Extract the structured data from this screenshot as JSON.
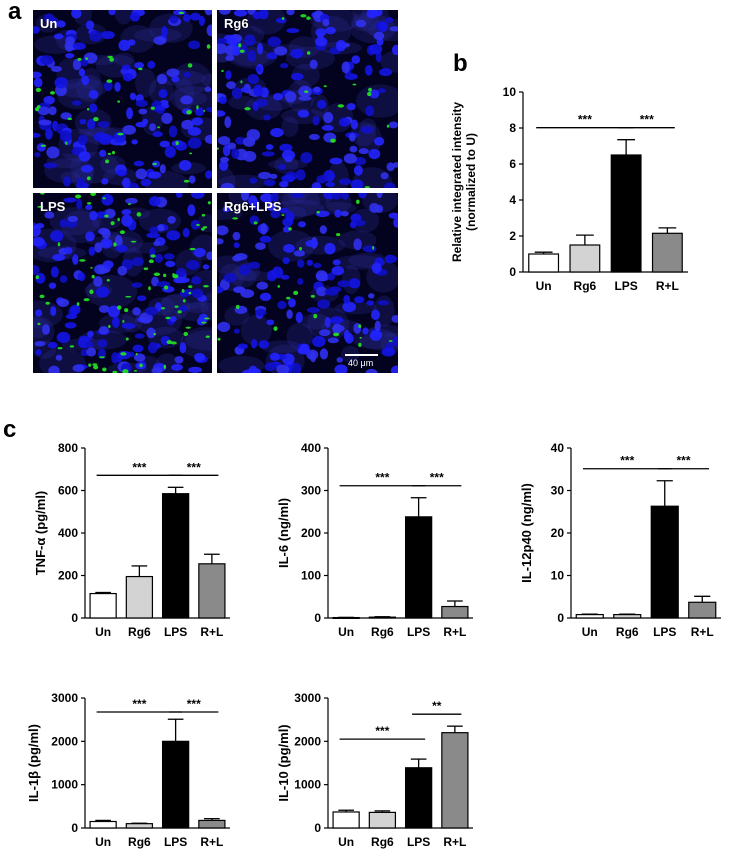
{
  "panels": {
    "a": "a",
    "b": "b",
    "c": "c"
  },
  "micrographs": [
    {
      "label": "Un",
      "green_density": 0.35
    },
    {
      "label": "Rg6",
      "green_density": 0.15
    },
    {
      "label": "LPS",
      "green_density": 1.0
    },
    {
      "label": "Rg6+LPS",
      "green_density": 0.2
    }
  ],
  "scalebar": {
    "label": "40 μm"
  },
  "colors": {
    "nuclei": "#1a1aff",
    "signal": "#22dd22",
    "background": "#03031f",
    "Un": "#ffffff",
    "Rg6": "#d3d3d3",
    "LPS": "#000000",
    "R+L": "#8a8a8a"
  },
  "chart_data": [
    {
      "type": "bar",
      "panel": "b",
      "categories": [
        "Un",
        "Rg6",
        "LPS",
        "R+L"
      ],
      "values": [
        1.0,
        1.5,
        6.5,
        2.15
      ],
      "errors": [
        0.1,
        0.55,
        0.85,
        0.3
      ],
      "ylabel": [
        "Relative integrated intensity",
        "(normalized to U)"
      ],
      "ylim": [
        0,
        10
      ],
      "yticks": [
        "0",
        "2",
        "4",
        "6",
        "8",
        "10"
      ],
      "significance": [
        {
          "from": 0,
          "to": 2,
          "label": "***"
        },
        {
          "from": 2,
          "to": 3,
          "label": "***"
        }
      ]
    },
    {
      "type": "bar",
      "panel": "c",
      "categories": [
        "Un",
        "Rg6",
        "LPS",
        "R+L"
      ],
      "values": [
        115,
        195,
        585,
        255
      ],
      "errors": [
        5,
        50,
        30,
        45
      ],
      "ylabel": [
        "TNF-α (pg/ml)"
      ],
      "ylim": [
        0,
        800
      ],
      "yticks": [
        "0",
        "200",
        "400",
        "600",
        "800"
      ],
      "significance": [
        {
          "from": 0,
          "to": 2,
          "label": "***"
        },
        {
          "from": 2,
          "to": 3,
          "label": "***"
        }
      ]
    },
    {
      "type": "bar",
      "panel": "c",
      "categories": [
        "Un",
        "Rg6",
        "LPS",
        "R+L"
      ],
      "values": [
        1,
        2,
        238,
        27
      ],
      "errors": [
        0.5,
        1,
        45,
        13
      ],
      "ylabel": [
        "IL-6 (ng/ml)"
      ],
      "ylim": [
        0,
        400
      ],
      "yticks": [
        "0",
        "100",
        "200",
        "300",
        "400"
      ],
      "significance": [
        {
          "from": 0,
          "to": 2,
          "label": "***"
        },
        {
          "from": 2,
          "to": 3,
          "label": "***"
        }
      ]
    },
    {
      "type": "bar",
      "panel": "c",
      "categories": [
        "Un",
        "Rg6",
        "LPS",
        "R+L"
      ],
      "values": [
        0.8,
        0.8,
        26.3,
        3.7
      ],
      "errors": [
        0.1,
        0.1,
        6,
        1.4
      ],
      "ylabel": [
        "IL-12p40 (ng/ml)"
      ],
      "ylim": [
        0,
        40
      ],
      "yticks": [
        "0",
        "10",
        "20",
        "30",
        "40"
      ],
      "significance": [
        {
          "from": 0,
          "to": 2,
          "label": "***"
        },
        {
          "from": 2,
          "to": 3,
          "label": "***"
        }
      ]
    },
    {
      "type": "bar",
      "panel": "c",
      "categories": [
        "Un",
        "Rg6",
        "LPS",
        "R+L"
      ],
      "values": [
        150,
        100,
        2000,
        175
      ],
      "errors": [
        25,
        10,
        510,
        40
      ],
      "ylabel": [
        "IL-1β (pg/ml)"
      ],
      "ylim": [
        0,
        3000
      ],
      "yticks": [
        "0",
        "1000",
        "2000",
        "3000"
      ],
      "significance": [
        {
          "from": 0,
          "to": 2,
          "label": "***"
        },
        {
          "from": 2,
          "to": 3,
          "label": "***"
        }
      ]
    },
    {
      "type": "bar",
      "panel": "c",
      "categories": [
        "Un",
        "Rg6",
        "LPS",
        "R+L"
      ],
      "values": [
        370,
        360,
        1390,
        2200
      ],
      "errors": [
        40,
        35,
        200,
        150
      ],
      "ylabel": [
        "IL-10 (pg/ml)"
      ],
      "ylim": [
        0,
        3000
      ],
      "yticks": [
        "0",
        "1000",
        "2000",
        "3000"
      ],
      "significance": [
        {
          "from": 0,
          "to": 2,
          "label": "***"
        },
        {
          "from": 2,
          "to": 3,
          "label": "**"
        }
      ]
    }
  ]
}
